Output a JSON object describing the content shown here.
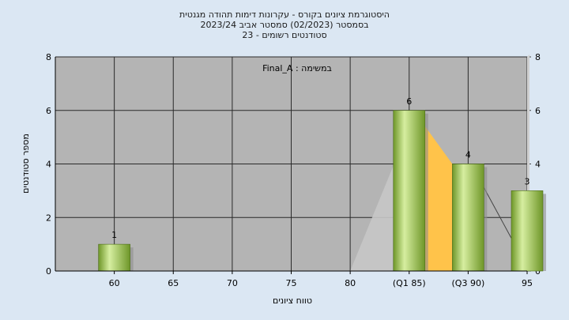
{
  "chart_data": {
    "type": "bar",
    "title_lines": [
      "היסטוגרמת ציונים בקורס - עקרונות דימות תהודה מגנטית",
      "בסמסטר  (02/2023)  סמסטר אביב 2023/24",
      "סטודנטים רשומים - 23"
    ],
    "xlabel": "טווח ציונים",
    "ylabel": "מספר סטודנטים",
    "ylim": [
      0,
      8
    ],
    "yticks": [
      "0",
      "2",
      "4",
      "6",
      "8"
    ],
    "categories": [
      "60",
      "65",
      "70",
      "75",
      "80",
      "(Q1 85)",
      "(Q3 90)",
      "95"
    ],
    "values": [
      1,
      0,
      0,
      0,
      0,
      6,
      4,
      3
    ],
    "data_labels": [
      "1",
      "",
      "",
      "",
      "",
      "6",
      "4",
      "3"
    ],
    "annotation": "במשימה : Final_A",
    "grid": true,
    "colors": {
      "plot_bg": "#b4b4b4",
      "bar_light": "#d6eea0",
      "bar_dark": "#6e9628",
      "area_yellow": "#ffc34a",
      "area_gray": "#c6c6c6",
      "page_bg": "#dbe7f3"
    }
  }
}
